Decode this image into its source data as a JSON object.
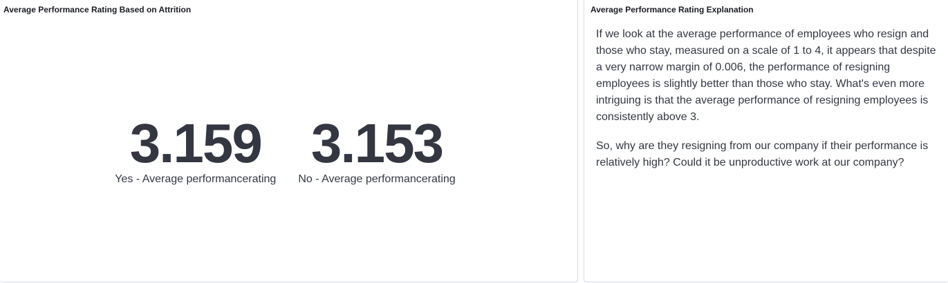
{
  "left_panel": {
    "title": "Average Performance Rating Based on Attrition",
    "metrics": [
      {
        "value": "3.159",
        "label": "Yes - Average performancerating"
      },
      {
        "value": "3.153",
        "label": "No - Average performancerating"
      }
    ]
  },
  "right_panel": {
    "title": "Average Performance Rating Explanation",
    "paragraphs": [
      "If we look at the average performance of employees who resign and those who stay, measured on a scale of 1 to 4, it appears that despite a very narrow margin of 0.006, the performance of resigning employees is slightly better than those who stay. What's even more intriguing is that the average performance of resigning employees is consistently above 3.",
      "So, why are they resigning from our company if their performance is relatively high? Could it be unproductive work at our company?"
    ]
  },
  "colors": {
    "text": "#343741",
    "title": "#1a1c21",
    "border": "#d3dae6"
  }
}
